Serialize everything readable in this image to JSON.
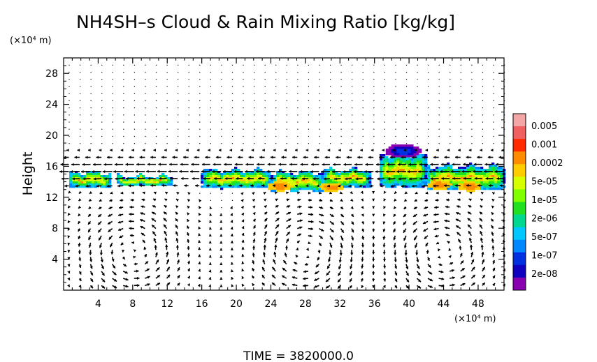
{
  "chart_data": {
    "type": "heatmap",
    "title": "NH4SH–s Cloud & Rain Mixing Ratio [kg/kg]",
    "ylabel": "Height",
    "y_unit_label": "(×10⁴ m)",
    "x_unit_label": "(×10⁴ m)",
    "footer_label": "TIME  =  3820000.0",
    "xlim": [
      0,
      51
    ],
    "ylim": [
      0,
      30
    ],
    "x_ticks": [
      4,
      8,
      12,
      16,
      20,
      24,
      28,
      32,
      36,
      40,
      44,
      48
    ],
    "y_ticks": [
      4,
      8,
      12,
      16,
      20,
      24,
      28
    ],
    "colorbar": {
      "labels": [
        "0.005",
        "0.001",
        "0.0002",
        "5e-05",
        "1e-05",
        "2e-06",
        "5e-07",
        "1e-07",
        "2e-08"
      ],
      "colors": [
        "#f4a6a6",
        "#f06060",
        "#ff2a00",
        "#ff8c00",
        "#ffcc00",
        "#d8ff00",
        "#7fff00",
        "#20e020",
        "#00d890",
        "#00c8ff",
        "#0088ff",
        "#0030e0",
        "#1000c0",
        "#8800b0"
      ]
    },
    "cloud_bands": [
      {
        "x": [
          0,
          13
        ],
        "y": [
          12.8,
          15.8
        ],
        "core": [
          [
            0.5,
            5.5,
            13.3,
            15.2
          ],
          [
            6,
            12.5,
            13.5,
            14.7
          ]
        ]
      },
      {
        "x": [
          15.5,
          36
        ],
        "y": [
          12.6,
          16.2
        ],
        "core": [
          [
            16,
            24,
            13.2,
            15.5
          ],
          [
            24,
            30,
            12.8,
            15.2
          ],
          [
            30,
            35.5,
            13.3,
            15.6
          ]
        ]
      },
      {
        "x": [
          36,
          51
        ],
        "y": [
          12.8,
          19
        ],
        "core": [
          [
            36.5,
            42,
            13.3,
            17.5
          ],
          [
            42,
            51,
            13,
            16
          ]
        ]
      }
    ],
    "hot_spots": [
      {
        "x": 25,
        "y": 13.4,
        "level": "0.0002"
      },
      {
        "x": 31,
        "y": 13.3,
        "level": "0.0002"
      },
      {
        "x": 43.5,
        "y": 13.6,
        "level": "0.0002"
      },
      {
        "x": 47,
        "y": 13.4,
        "level": "5e-05"
      }
    ],
    "wind_vectors": "eastward/westward velocity field overlaid as black arrows; circulation cells below cloud layer, strong westward flow near 14-18",
    "wind_features": [
      {
        "name": "cell-left",
        "cx": 8,
        "cy": 5
      },
      {
        "name": "cell-center",
        "cx": 28,
        "cy": 5
      },
      {
        "name": "cell-right",
        "cx": 44,
        "cy": 5
      }
    ]
  }
}
